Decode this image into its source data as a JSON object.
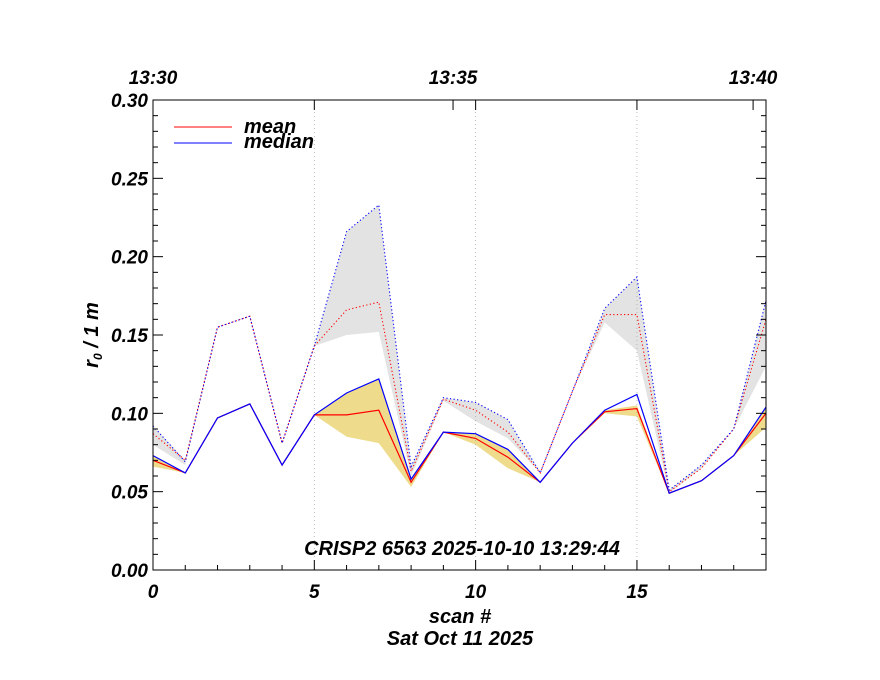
{
  "chart_data": {
    "type": "line",
    "title": "CRISP2 6563 2025-10-10 13:29:44",
    "xlabel": "scan #",
    "date_label": "Sat Oct 11 2025",
    "ylabel_main": "r",
    "ylabel_sub": "0",
    "ylabel_rest": " / 1 m",
    "xlim": [
      0,
      19
    ],
    "ylim": [
      0.0,
      0.3
    ],
    "x_ticks": [
      0,
      5,
      10,
      15
    ],
    "x_tick_labels": [
      "0",
      "5",
      "10",
      "15"
    ],
    "y_ticks": [
      0.0,
      0.05,
      0.1,
      0.15,
      0.2,
      0.25,
      0.3
    ],
    "y_tick_labels": [
      "0.00",
      "0.05",
      "0.10",
      "0.15",
      "0.20",
      "0.25",
      "0.30"
    ],
    "top_ticks": [
      0,
      9.3,
      18.6
    ],
    "top_tick_labels": [
      "13:30",
      "13:35",
      "13:40"
    ],
    "grid_x": [
      5,
      10,
      15
    ],
    "x": [
      0,
      1,
      2,
      3,
      4,
      5,
      6,
      7,
      8,
      9,
      10,
      11,
      12,
      13,
      14,
      15,
      16,
      17,
      18,
      19
    ],
    "series": [
      {
        "name": "mean",
        "style": "solid",
        "color": "#ff0000",
        "values": [
          0.07,
          0.062,
          0.097,
          0.106,
          0.067,
          0.099,
          0.099,
          0.102,
          0.056,
          0.088,
          0.084,
          0.072,
          0.056,
          0.081,
          0.101,
          0.103,
          0.049,
          0.057,
          0.073,
          0.1
        ]
      },
      {
        "name": "median",
        "style": "solid",
        "color": "#0000ff",
        "values": [
          0.073,
          0.062,
          0.097,
          0.106,
          0.067,
          0.099,
          0.113,
          0.122,
          0.058,
          0.088,
          0.087,
          0.077,
          0.056,
          0.081,
          0.102,
          0.112,
          0.049,
          0.057,
          0.073,
          0.104
        ]
      },
      {
        "name": "mean-upper",
        "style": "dotted",
        "color": "#ff0000",
        "values": [
          0.087,
          0.07,
          0.155,
          0.162,
          0.081,
          0.143,
          0.166,
          0.171,
          0.063,
          0.109,
          0.102,
          0.088,
          0.062,
          0.114,
          0.163,
          0.163,
          0.05,
          0.065,
          0.09,
          0.16
        ]
      },
      {
        "name": "median-upper",
        "style": "dotted",
        "color": "#0000ff",
        "values": [
          0.092,
          0.069,
          0.155,
          0.162,
          0.081,
          0.143,
          0.216,
          0.233,
          0.066,
          0.11,
          0.107,
          0.096,
          0.062,
          0.114,
          0.167,
          0.187,
          0.051,
          0.067,
          0.09,
          0.172
        ]
      }
    ],
    "bands": [
      {
        "name": "gray-band",
        "color": "#e3e3e3",
        "upper": [
          0.092,
          0.07,
          0.155,
          0.162,
          0.081,
          0.143,
          0.216,
          0.233,
          0.066,
          0.11,
          0.107,
          0.096,
          0.062,
          0.114,
          0.167,
          0.187,
          0.051,
          0.067,
          0.09,
          0.172
        ],
        "lower": [
          0.08,
          0.067,
          0.155,
          0.162,
          0.081,
          0.143,
          0.15,
          0.152,
          0.06,
          0.108,
          0.095,
          0.084,
          0.062,
          0.114,
          0.158,
          0.14,
          0.049,
          0.065,
          0.09,
          0.13
        ]
      },
      {
        "name": "yellow-band",
        "color": "#eedc8c",
        "upper": [
          0.073,
          0.062,
          0.097,
          0.106,
          0.067,
          0.099,
          0.113,
          0.122,
          0.058,
          0.088,
          0.087,
          0.077,
          0.056,
          0.081,
          0.102,
          0.105,
          0.049,
          0.057,
          0.073,
          0.104
        ],
        "lower": [
          0.066,
          0.062,
          0.097,
          0.106,
          0.067,
          0.099,
          0.085,
          0.081,
          0.053,
          0.088,
          0.08,
          0.065,
          0.056,
          0.081,
          0.1,
          0.098,
          0.049,
          0.057,
          0.073,
          0.091
        ]
      }
    ],
    "legend": [
      {
        "label": "mean",
        "color": "#ff0000"
      },
      {
        "label": "median",
        "color": "#0000ff"
      }
    ],
    "legend_position": "top-left"
  }
}
